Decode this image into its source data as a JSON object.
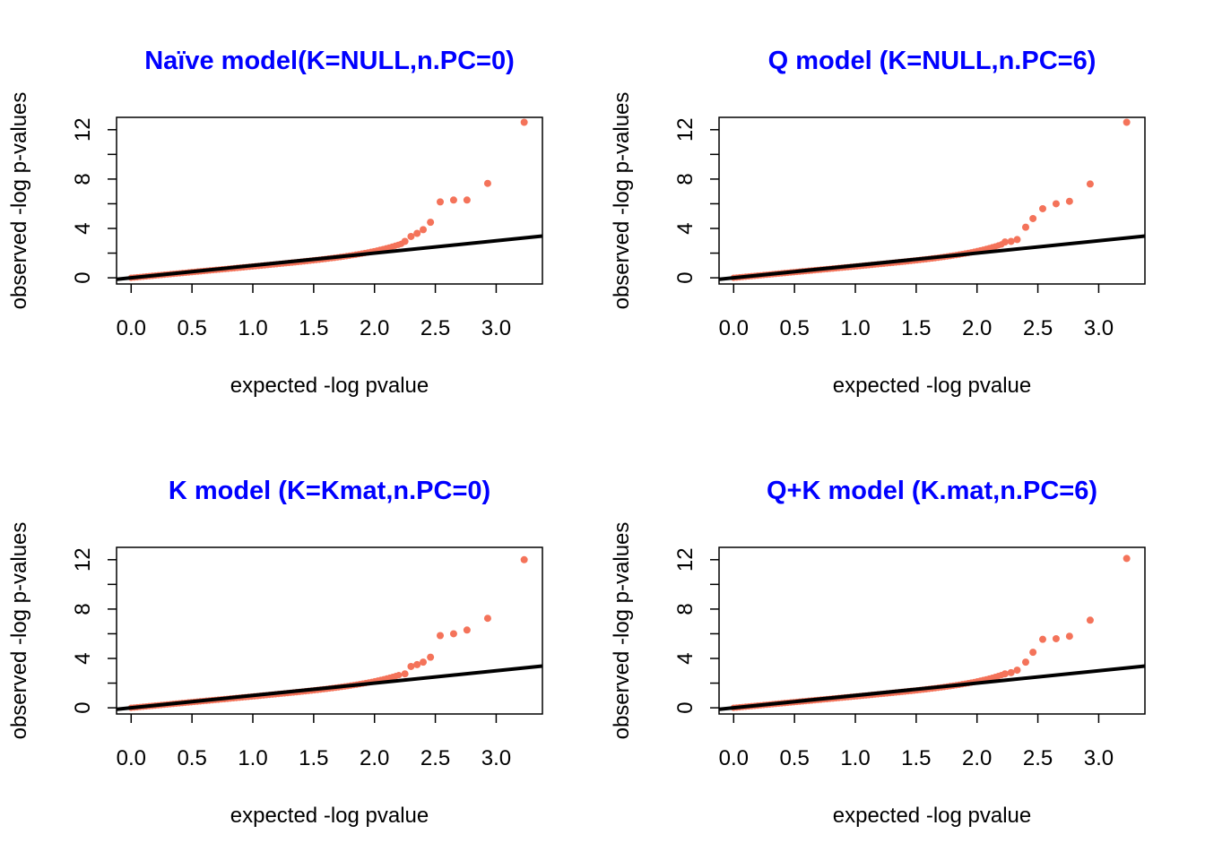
{
  "colors": {
    "points": "#f4735a",
    "line": "#000000",
    "title": "#0000ff"
  },
  "chart_data": [
    {
      "type": "scatter",
      "title": "Naïve model(K=NULL,n.PC=0)",
      "xlabel": "expected -log pvalue",
      "ylabel": "observed -log p-values",
      "xlim": [
        -0.12,
        3.38
      ],
      "ylim": [
        -0.5,
        13.0
      ],
      "xticks": [
        "0.0",
        "0.5",
        "1.0",
        "1.5",
        "2.0",
        "2.5",
        "3.0"
      ],
      "yticks": [
        "0",
        "4",
        "8",
        "12"
      ],
      "reference_line": {
        "slope": 1,
        "intercept": 0
      },
      "points": [
        [
          3.23,
          12.6
        ],
        [
          2.93,
          7.65
        ],
        [
          2.76,
          6.3
        ],
        [
          2.65,
          6.3
        ],
        [
          2.54,
          6.15
        ],
        [
          2.46,
          4.5
        ],
        [
          2.4,
          3.9
        ],
        [
          2.35,
          3.6
        ],
        [
          2.3,
          3.35
        ],
        [
          2.25,
          2.95
        ]
      ],
      "tail": {
        "from": 0.0,
        "to": 2.22,
        "end_y": 2.75,
        "curve_power": 1.25
      }
    },
    {
      "type": "scatter",
      "title": "Q model (K=NULL,n.PC=6)",
      "xlabel": "expected -log pvalue",
      "ylabel": "observed -log p-values",
      "xlim": [
        -0.12,
        3.38
      ],
      "ylim": [
        -0.5,
        13.0
      ],
      "xticks": [
        "0.0",
        "0.5",
        "1.0",
        "1.5",
        "2.0",
        "2.5",
        "3.0"
      ],
      "yticks": [
        "0",
        "4",
        "8",
        "12"
      ],
      "reference_line": {
        "slope": 1,
        "intercept": 0
      },
      "points": [
        [
          3.23,
          12.6
        ],
        [
          2.93,
          7.6
        ],
        [
          2.76,
          6.2
        ],
        [
          2.65,
          6.0
        ],
        [
          2.54,
          5.6
        ],
        [
          2.46,
          4.8
        ],
        [
          2.4,
          4.1
        ],
        [
          2.33,
          3.1
        ],
        [
          2.28,
          2.95
        ],
        [
          2.23,
          2.9
        ]
      ],
      "tail": {
        "from": 0.0,
        "to": 2.2,
        "end_y": 2.7,
        "curve_power": 1.3
      }
    },
    {
      "type": "scatter",
      "title": "K model (K=Kmat,n.PC=0)",
      "xlabel": "expected -log pvalue",
      "ylabel": "observed -log p-values",
      "xlim": [
        -0.12,
        3.38
      ],
      "ylim": [
        -0.5,
        13.0
      ],
      "xticks": [
        "0.0",
        "0.5",
        "1.0",
        "1.5",
        "2.0",
        "2.5",
        "3.0"
      ],
      "yticks": [
        "0",
        "4",
        "8",
        "12"
      ],
      "reference_line": {
        "slope": 1,
        "intercept": 0
      },
      "points": [
        [
          3.23,
          12.0
        ],
        [
          2.93,
          7.25
        ],
        [
          2.76,
          6.3
        ],
        [
          2.65,
          6.0
        ],
        [
          2.54,
          5.85
        ],
        [
          2.46,
          4.1
        ],
        [
          2.4,
          3.7
        ],
        [
          2.35,
          3.5
        ],
        [
          2.3,
          3.35
        ],
        [
          2.25,
          2.75
        ]
      ],
      "tail": {
        "from": 0.0,
        "to": 2.2,
        "end_y": 2.65,
        "curve_power": 1.25
      }
    },
    {
      "type": "scatter",
      "title": "Q+K model (K.mat,n.PC=6)",
      "xlabel": "expected -log pvalue",
      "ylabel": "observed -log p-values",
      "xlim": [
        -0.12,
        3.38
      ],
      "ylim": [
        -0.5,
        13.0
      ],
      "xticks": [
        "0.0",
        "0.5",
        "1.0",
        "1.5",
        "2.0",
        "2.5",
        "3.0"
      ],
      "yticks": [
        "0",
        "4",
        "8",
        "12"
      ],
      "reference_line": {
        "slope": 1,
        "intercept": 0
      },
      "points": [
        [
          3.23,
          12.1
        ],
        [
          2.93,
          7.1
        ],
        [
          2.76,
          5.8
        ],
        [
          2.65,
          5.6
        ],
        [
          2.54,
          5.55
        ],
        [
          2.46,
          4.5
        ],
        [
          2.4,
          3.7
        ],
        [
          2.33,
          3.05
        ],
        [
          2.28,
          2.85
        ],
        [
          2.23,
          2.75
        ]
      ],
      "tail": {
        "from": 0.0,
        "to": 2.2,
        "end_y": 2.65,
        "curve_power": 1.3
      }
    }
  ]
}
